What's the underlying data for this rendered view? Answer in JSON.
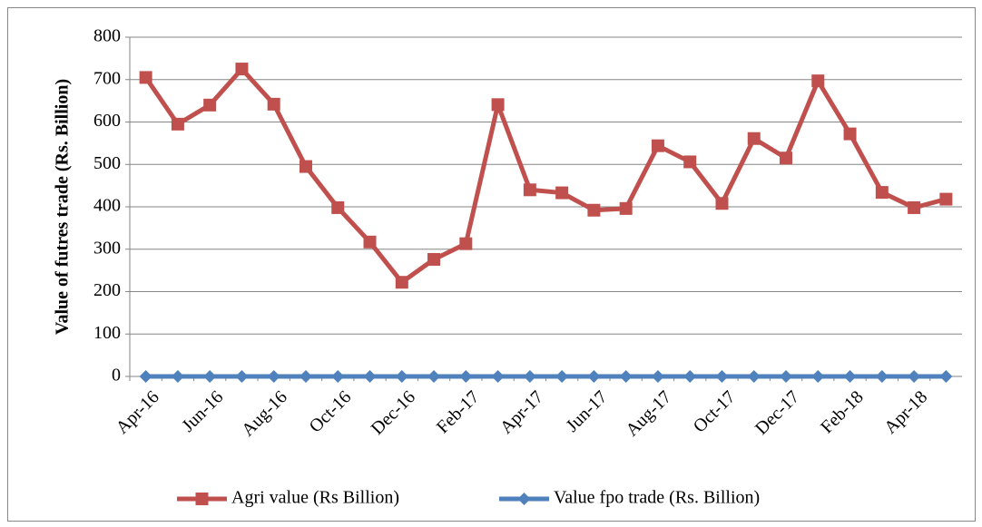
{
  "chart_data": {
    "type": "line",
    "y_label": "Value of futres trade (Rs. Billion)",
    "categories": [
      "Apr-16",
      null,
      "Jun-16",
      null,
      "Aug-16",
      null,
      "Oct-16",
      null,
      "Dec-16",
      null,
      "Feb-17",
      null,
      "Apr-17",
      null,
      "Jun-17",
      null,
      "Aug-17",
      null,
      "Oct-17",
      null,
      "Dec-17",
      null,
      "Feb-18",
      null,
      "Apr-18",
      null
    ],
    "series": [
      {
        "name": "Agri value (Rs Billion)",
        "color": "#c0504d",
        "marker": "square",
        "values": [
          705,
          595,
          640,
          725,
          642,
          495,
          398,
          317,
          222,
          276,
          313,
          641,
          440,
          433,
          392,
          396,
          544,
          506,
          408,
          561,
          515,
          697,
          572,
          434,
          398,
          418
        ]
      },
      {
        "name": "Value fpo trade (Rs. Billion)",
        "color": "#4f81bd",
        "marker": "diamond",
        "values": [
          0,
          0,
          0,
          0,
          0,
          0,
          0,
          0,
          0,
          0,
          0,
          0,
          0,
          0,
          0,
          0,
          0,
          0,
          0,
          0,
          0,
          0,
          0,
          0,
          0,
          0
        ]
      }
    ],
    "ylim": [
      0,
      800
    ],
    "yticks": [
      0,
      100,
      200,
      300,
      400,
      500,
      600,
      700,
      800
    ],
    "grid": true,
    "legend": "bottom"
  }
}
